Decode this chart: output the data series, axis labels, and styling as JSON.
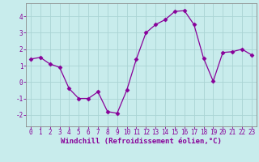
{
  "x": [
    0,
    1,
    2,
    3,
    4,
    5,
    6,
    7,
    8,
    9,
    10,
    11,
    12,
    13,
    14,
    15,
    16,
    17,
    18,
    19,
    20,
    21,
    22,
    23
  ],
  "y": [
    1.4,
    1.5,
    1.1,
    0.9,
    -0.4,
    -1.0,
    -1.0,
    -0.6,
    -1.8,
    -1.9,
    -0.5,
    1.4,
    3.0,
    3.5,
    3.8,
    4.3,
    4.35,
    3.5,
    1.45,
    0.05,
    1.8,
    1.85,
    2.0,
    1.65
  ],
  "line_color": "#880099",
  "marker": "D",
  "marker_size": 2.5,
  "bg_color": "#c8ecec",
  "grid_color": "#aad4d4",
  "xlabel": "Windchill (Refroidissement éolien,°C)",
  "xlim": [
    -0.5,
    23.5
  ],
  "ylim": [
    -2.7,
    4.8
  ],
  "yticks": [
    -2,
    -1,
    0,
    1,
    2,
    3,
    4
  ],
  "xticks": [
    0,
    1,
    2,
    3,
    4,
    5,
    6,
    7,
    8,
    9,
    10,
    11,
    12,
    13,
    14,
    15,
    16,
    17,
    18,
    19,
    20,
    21,
    22,
    23
  ],
  "tick_fontsize": 5.5,
  "xlabel_fontsize": 6.5,
  "text_color": "#880099",
  "spine_color": "#888888"
}
